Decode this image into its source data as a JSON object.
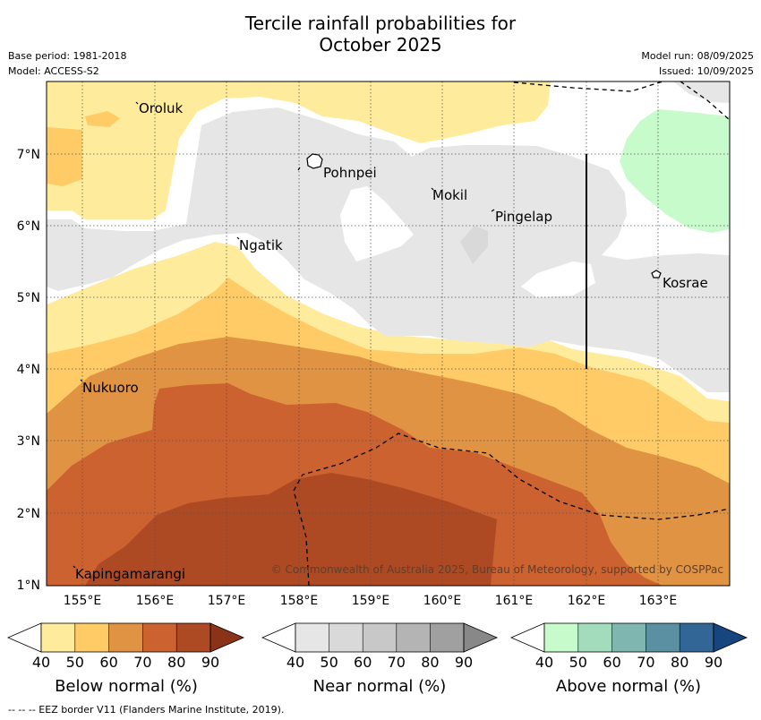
{
  "title": {
    "line1": "Tercile rainfall probabilities for",
    "line2": "October 2025"
  },
  "meta_left": {
    "base_period": "Base period: 1981-2018",
    "model": "Model: ACCESS-S2"
  },
  "meta_right": {
    "model_run": "Model run: 08/09/2025",
    "issued": "Issued: 10/09/2025"
  },
  "map": {
    "lon_ticks": [
      "155°E",
      "156°E",
      "157°E",
      "158°E",
      "159°E",
      "160°E",
      "161°E",
      "162°E",
      "163°E"
    ],
    "lat_ticks": [
      "7°N",
      "6°N",
      "5°N",
      "4°N",
      "3°N",
      "2°N",
      "1°N"
    ],
    "places": {
      "oroluk": "Oroluk",
      "pohnpei": "Pohnpei",
      "mokil": "Mokil",
      "pingelap": "Pingelap",
      "ngatik": "Ngatik",
      "kosrae": "Kosrae",
      "nukuoro": "Nukuoro",
      "kapingamarangi": "Kapingamarangi"
    },
    "copyright": "© Commonwealth of Australia 2025, Bureau of Meteorology, supported by COSPPac"
  },
  "colorbars": {
    "below": {
      "title": "Below normal (%)",
      "ticks": [
        "40",
        "50",
        "60",
        "70",
        "80",
        "90"
      ],
      "colors": [
        "#ffeb9c",
        "#ffcb66",
        "#e09342",
        "#cc6230",
        "#ad4a24",
        "#8a3318"
      ]
    },
    "near": {
      "title": "Near normal (%)",
      "ticks": [
        "40",
        "50",
        "60",
        "70",
        "80",
        "90"
      ],
      "colors": [
        "#e6e6e6",
        "#d9d9d9",
        "#c8c8c8",
        "#b4b4b4",
        "#a0a0a0",
        "#888888"
      ]
    },
    "above": {
      "title": "Above normal (%)",
      "ticks": [
        "40",
        "50",
        "60",
        "70",
        "80",
        "90"
      ],
      "colors": [
        "#c8fbcb",
        "#a2dcbd",
        "#7fb6b0",
        "#5a90a2",
        "#326697",
        "#17457e"
      ]
    }
  },
  "footer": "--  --  -- EEZ border V11 (Flanders Marine Institute, 2019)."
}
